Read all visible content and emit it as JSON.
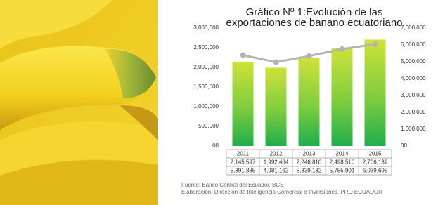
{
  "chart_data": {
    "type": "bar_line",
    "title": "Gráfico Nº 1:Evolución de las exportaciones de banano ecuatoriano",
    "categories": [
      "2011",
      "2012",
      "2013",
      "2014",
      "2015"
    ],
    "series": [
      {
        "color": "#3cb94a",
        "values": [
          2145597,
          1992464,
          2246810,
          2498510,
          2706139
        ],
        "value_labels": [
          "2,145,597",
          "1,992,464",
          "2,246,810",
          "2,498,510",
          "2,706,139"
        ]
      },
      {
        "color": "#b4b4b4",
        "axis": "y2",
        "values": [
          5391885,
          4981162,
          5339182,
          5755901,
          6039695
        ],
        "value_labels": [
          "5,391,885",
          "4,981,162",
          "5,339,182",
          "5,755,901",
          "6,039,695"
        ]
      }
    ],
    "ylim": [
      0,
      3000000
    ],
    "yticks": [
      {
        "value": 0,
        "label": "00"
      },
      {
        "value": 500000,
        "label": "500,000"
      },
      {
        "value": 1000000,
        "label": "1,000,000"
      },
      {
        "value": 1500000,
        "label": "1,500,000"
      },
      {
        "value": 2000000,
        "label": "2,000,000"
      },
      {
        "value": 2500000,
        "label": "2,500,000"
      },
      {
        "value": 3000000,
        "label": "3,000,000"
      }
    ],
    "y2lim": [
      0,
      7000000
    ],
    "y2ticks": [
      {
        "value": 0,
        "label": "00"
      },
      {
        "value": 1000000,
        "label": "1,000,000"
      },
      {
        "value": 2000000,
        "label": "2,000,000"
      },
      {
        "value": 3000000,
        "label": "3,000,000"
      },
      {
        "value": 4000000,
        "label": "4,000,000"
      },
      {
        "value": 5000000,
        "label": "5,000,000"
      },
      {
        "value": 6000000,
        "label": "6,000,000"
      },
      {
        "value": 7000000,
        "label": "7,000,000"
      }
    ],
    "grid": false,
    "notes": [
      "Fuente: Banco Central del Ecuador, BCE",
      "Elaboración: Dirección de Inteligencia Comercial e Inversiones, PRO ECUADOR"
    ]
  }
}
